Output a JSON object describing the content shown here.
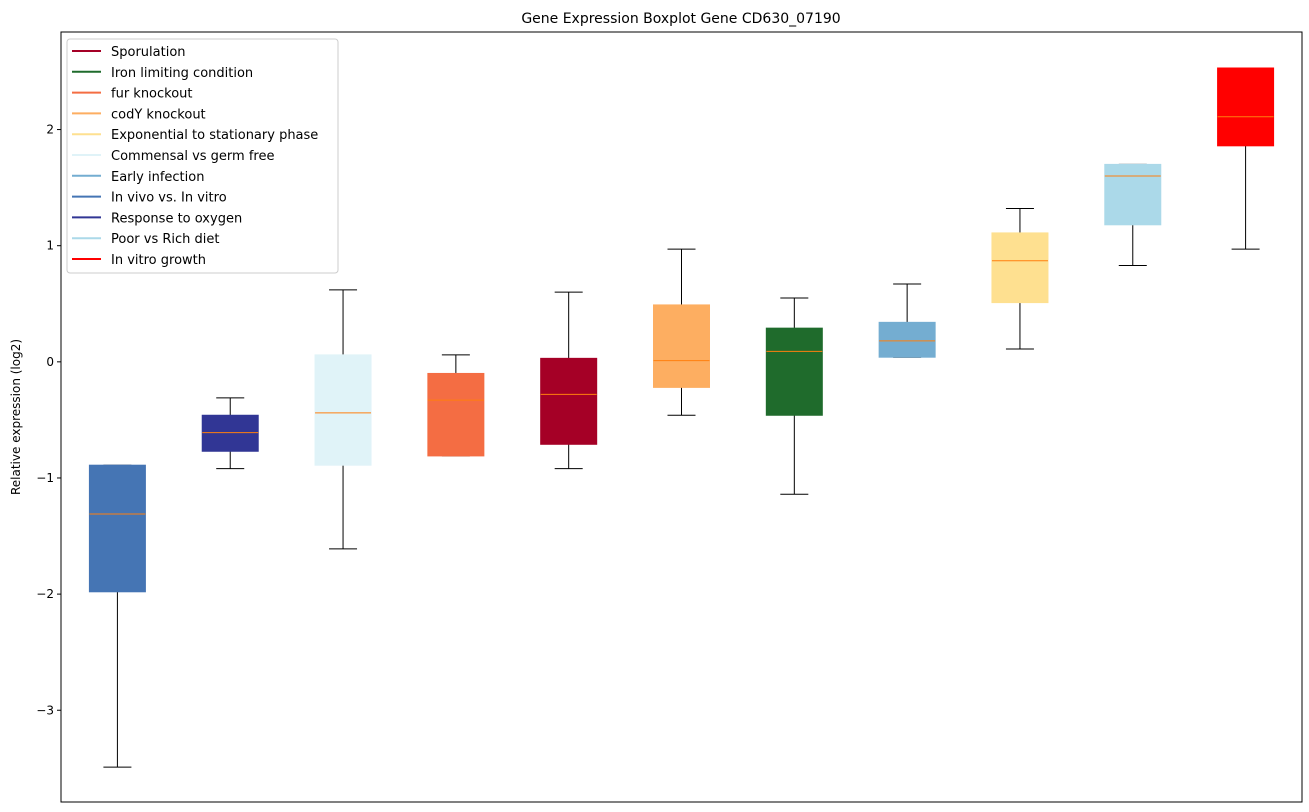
{
  "chart_data": {
    "type": "boxplot",
    "title": "Gene Expression Boxplot Gene CD630_07190",
    "xlabel": "",
    "ylabel": "Relative expression (log2)",
    "ylim": [
      -3.79,
      2.84
    ],
    "yticks": [
      -3,
      -2,
      -1,
      0,
      1,
      2
    ],
    "ytick_labels": [
      "−3",
      "−2",
      "−1",
      "0",
      "1",
      "2"
    ],
    "grid": false,
    "legend_position": "top-left",
    "median_color": "#ff7f0e",
    "series": [
      {
        "name": "In vivo vs. In vitro",
        "color": "#4575b4",
        "whisker_low": -3.49,
        "q1": -1.98,
        "median": -1.31,
        "q3": -0.89,
        "whisker_high": -0.89
      },
      {
        "name": "Response to oxygen",
        "color": "#313695",
        "whisker_low": -0.92,
        "q1": -0.77,
        "median": -0.61,
        "q3": -0.46,
        "whisker_high": -0.31
      },
      {
        "name": "Commensal vs germ free",
        "color": "#e0f3f8",
        "whisker_low": -1.61,
        "q1": -0.89,
        "median": -0.44,
        "q3": 0.06,
        "whisker_high": 0.62
      },
      {
        "name": "fur knockout",
        "color": "#f46d43",
        "whisker_low": -0.81,
        "q1": -0.81,
        "median": -0.33,
        "q3": -0.1,
        "whisker_high": 0.06
      },
      {
        "name": "Sporulation",
        "color": "#a50026",
        "whisker_low": -0.92,
        "q1": -0.71,
        "median": -0.28,
        "q3": 0.03,
        "whisker_high": 0.6
      },
      {
        "name": "codY knockout",
        "color": "#fdae61",
        "whisker_low": -0.46,
        "q1": -0.22,
        "median": 0.01,
        "q3": 0.49,
        "whisker_high": 0.97
      },
      {
        "name": "Iron limiting condition",
        "color": "#1f6b2c",
        "whisker_low": -1.14,
        "q1": -0.46,
        "median": 0.09,
        "q3": 0.29,
        "whisker_high": 0.55
      },
      {
        "name": "Early infection",
        "color": "#74add1",
        "whisker_low": 0.04,
        "q1": 0.04,
        "median": 0.18,
        "q3": 0.34,
        "whisker_high": 0.67
      },
      {
        "name": "Exponential to stationary phase",
        "color": "#fee090",
        "whisker_low": 0.11,
        "q1": 0.51,
        "median": 0.87,
        "q3": 1.11,
        "whisker_high": 1.32
      },
      {
        "name": "Poor vs Rich diet",
        "color": "#abd9e9",
        "whisker_low": 0.83,
        "q1": 1.18,
        "median": 1.6,
        "q3": 1.7,
        "whisker_high": 1.7
      },
      {
        "name": "In vitro growth",
        "color": "#ff0000",
        "whisker_low": 0.97,
        "q1": 1.86,
        "median": 2.11,
        "q3": 2.53,
        "whisker_high": 2.53
      }
    ],
    "legend": [
      {
        "label": "Sporulation",
        "color": "#a50026"
      },
      {
        "label": "Iron limiting condition",
        "color": "#1f6b2c"
      },
      {
        "label": "fur knockout",
        "color": "#f46d43"
      },
      {
        "label": "codY knockout",
        "color": "#fdae61"
      },
      {
        "label": "Exponential to stationary phase",
        "color": "#fee090"
      },
      {
        "label": "Commensal vs germ free",
        "color": "#e0f3f8"
      },
      {
        "label": "Early infection",
        "color": "#74add1"
      },
      {
        "label": "In vivo vs. In vitro",
        "color": "#4575b4"
      },
      {
        "label": "Response to oxygen",
        "color": "#313695"
      },
      {
        "label": "Poor vs Rich diet",
        "color": "#abd9e9"
      },
      {
        "label": "In vitro growth",
        "color": "#ff0000"
      }
    ]
  }
}
